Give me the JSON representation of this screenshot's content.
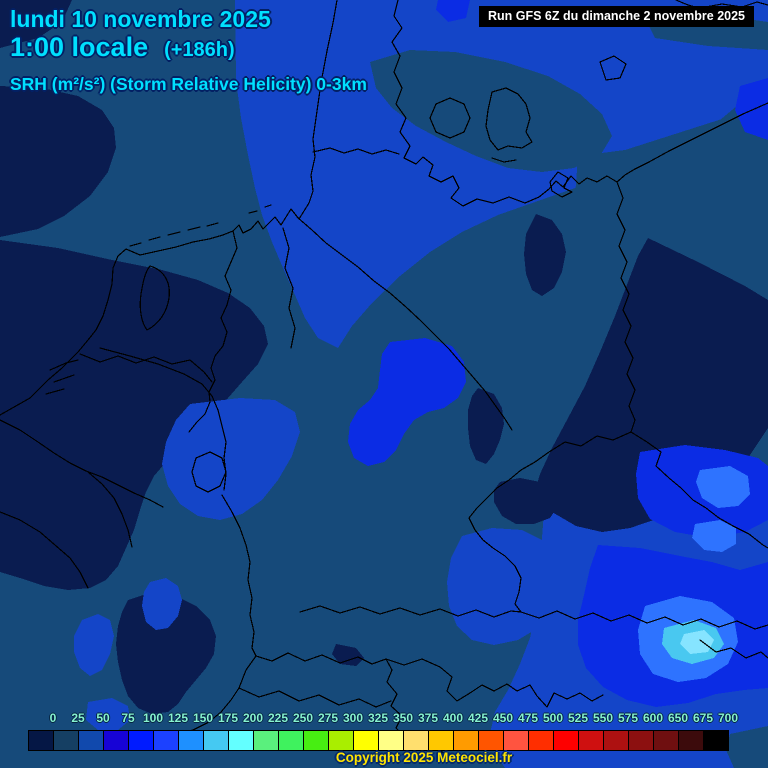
{
  "header": {
    "date": "lundi 10 novembre 2025",
    "time": "1:00 locale",
    "forecast_offset": "(+186h)",
    "variable": "SRH (m²/s²) (Storm Relative Helicity) 0-3km"
  },
  "run_box": {
    "text": "Run GFS 6Z du dimanche 2 novembre 2025"
  },
  "footer": {
    "copyright": "Copyright 2025 Meteociel.fr"
  },
  "colorbar": {
    "unit_values": [
      "0",
      "25",
      "50",
      "75",
      "100",
      "125",
      "150",
      "175",
      "200",
      "225",
      "250",
      "275",
      "300",
      "325",
      "350",
      "375",
      "400",
      "425",
      "450",
      "475",
      "500",
      "525",
      "550",
      "575",
      "600",
      "650",
      "675",
      "700"
    ],
    "cell_colors": [
      "#051745",
      "#153f63",
      "#1149ad",
      "#1703d6",
      "#001bff",
      "#1c41ff",
      "#1e90ff",
      "#45c9f2",
      "#63ffff",
      "#5af07d",
      "#3ff25e",
      "#47ee12",
      "#a9ee00",
      "#ffff00",
      "#ffff86",
      "#ffdf6e",
      "#ffc800",
      "#ff9b00",
      "#ff5500",
      "#ff5440",
      "#ff2e00",
      "#fe0000",
      "#cf1010",
      "#ad1111",
      "#8c1010",
      "#6f0f10",
      "#3c0b0c",
      "#000000"
    ]
  },
  "colors": {
    "header_text": "#00e0ff",
    "header_outline": "#032064",
    "label_text": "#86f2d0",
    "label_outline": "#04233f",
    "copyright_text": "#ffe400",
    "copyright_outline": "#05296a",
    "run_box_bg": "#000000",
    "run_box_text": "#ffffff",
    "map_base": "#164a7a",
    "map_navy": "#0a1c50",
    "map_royal": "#1445c8",
    "map_bright": "#0b2ce4",
    "map_light": "#2e73ff",
    "map_sky": "#49c8f0",
    "map_pale": "#86e4ff",
    "border_line": "#000000"
  }
}
